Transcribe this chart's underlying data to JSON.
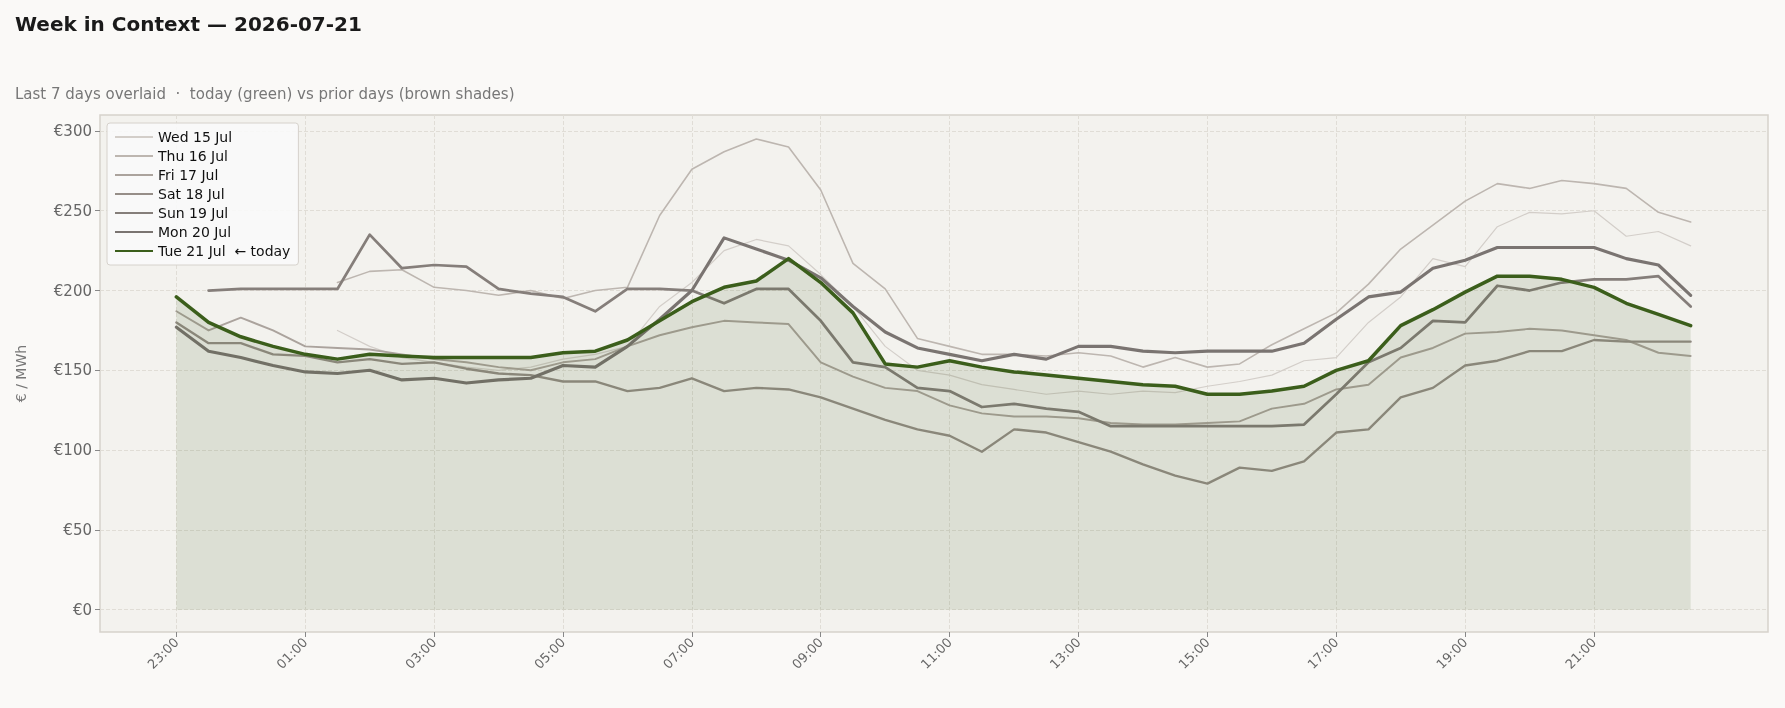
{
  "chart_data": {
    "type": "line",
    "title": "Week in Context — 2026-07-21",
    "subtitle": "Last 7 days overlaid  ·  today (green) vs prior days (brown shades)",
    "ylabel": "€ / MWh",
    "categories": [
      "23:00",
      null,
      null,
      null,
      "01:00",
      null,
      null,
      null,
      "03:00",
      null,
      null,
      null,
      "05:00",
      null,
      null,
      null,
      "07:00",
      null,
      null,
      null,
      "09:00",
      null,
      null,
      null,
      "11:00",
      null,
      null,
      null,
      "13:00",
      null,
      null,
      null,
      "15:00",
      null,
      null,
      null,
      "17:00",
      null,
      null,
      null,
      "19:00",
      null,
      null,
      null,
      "21:00",
      null,
      null,
      null
    ],
    "ylim": [
      -14,
      310
    ],
    "yticks": [
      {
        "value": 0,
        "label": "€0"
      },
      {
        "value": 50,
        "label": "€50"
      },
      {
        "value": 100,
        "label": "€100"
      },
      {
        "value": 150,
        "label": "€150"
      },
      {
        "value": 200,
        "label": "€200"
      },
      {
        "value": 250,
        "label": "€250"
      },
      {
        "value": 300,
        "label": "€300"
      }
    ],
    "grid": true,
    "legend": "top left",
    "marker": "none",
    "line_style": "solid",
    "series": [
      {
        "name": "Wed 15 Jul",
        "color": "#d3cec9",
        "values": [
          null,
          null,
          null,
          null,
          null,
          175,
          165,
          158,
          155,
          152,
          150,
          152,
          157,
          160,
          165,
          190,
          205,
          225,
          232,
          228,
          210,
          190,
          165,
          150,
          147,
          141,
          138,
          135,
          137,
          135,
          137,
          136,
          140,
          143,
          147,
          156,
          158,
          180,
          196,
          220,
          215,
          240,
          249,
          248,
          250,
          234,
          237,
          228
        ]
      },
      {
        "name": "Thu 16 Jul",
        "color": "#bdb6b0",
        "values": [
          null,
          null,
          null,
          null,
          null,
          205,
          212,
          213,
          202,
          200,
          197,
          200,
          195,
          200,
          202,
          247,
          276,
          287,
          295,
          290,
          263,
          217,
          201,
          170,
          165,
          160,
          160,
          159,
          161,
          159,
          152,
          158,
          152,
          154,
          166,
          176,
          186,
          204,
          226,
          241,
          256,
          267,
          264,
          269,
          267,
          264,
          249,
          243
        ]
      },
      {
        "name": "Fri 17 Jul",
        "color": "#aba39d",
        "values": [
          187,
          175,
          183,
          175,
          165,
          164,
          163,
          160,
          157,
          155,
          152,
          150,
          155,
          157,
          165,
          172,
          177,
          181,
          180,
          179,
          155,
          146,
          139,
          137,
          128,
          123,
          121,
          121,
          120,
          117,
          116,
          116,
          117,
          118,
          126,
          129,
          138,
          141,
          158,
          164,
          173,
          174,
          176,
          175,
          172,
          169,
          161,
          159
        ]
      },
      {
        "name": "Sat 18 Jul",
        "color": "#968e88",
        "values": [
          180,
          167,
          167,
          160,
          159,
          155,
          157,
          154,
          155,
          151,
          148,
          147,
          143,
          143,
          137,
          139,
          145,
          137,
          139,
          138,
          133,
          126,
          119,
          113,
          109,
          99,
          113,
          111,
          105,
          99,
          91,
          84,
          79,
          89,
          87,
          93,
          111,
          113,
          133,
          139,
          153,
          156,
          162,
          162,
          169,
          168,
          168,
          168
        ]
      },
      {
        "name": "Sun 19 Jul",
        "color": "#857e7a",
        "values": [
          null,
          200,
          201,
          201,
          201,
          201,
          235,
          214,
          216,
          215,
          201,
          198,
          196,
          187,
          201,
          201,
          200,
          192,
          201,
          201,
          181,
          155,
          152,
          139,
          137,
          127,
          129,
          126,
          124,
          115,
          115,
          115,
          115,
          115,
          115,
          116,
          135,
          155,
          164,
          181,
          180,
          203,
          200,
          205,
          207,
          207,
          209,
          190
        ]
      },
      {
        "name": "Mon 20 Jul",
        "color": "#7a7471",
        "values": [
          177,
          162,
          158,
          153,
          149,
          148,
          150,
          144,
          145,
          142,
          144,
          145,
          153,
          152,
          165,
          182,
          200,
          233,
          226,
          219,
          208,
          190,
          174,
          164,
          160,
          156,
          160,
          157,
          165,
          165,
          162,
          161,
          162,
          162,
          162,
          167,
          182,
          196,
          199,
          214,
          219,
          227,
          227,
          227,
          227,
          220,
          216,
          197
        ]
      },
      {
        "name": "Tue 21 Jul  ← today",
        "color": "#3b5e1b",
        "type": "area",
        "values": [
          196,
          180,
          171,
          165,
          160,
          157,
          160,
          159,
          158,
          158,
          158,
          158,
          161,
          162,
          169,
          181,
          193,
          202,
          206,
          220,
          205,
          186,
          154,
          152,
          156,
          152,
          149,
          147,
          145,
          143,
          141,
          140,
          135,
          135,
          137,
          140,
          150,
          156,
          178,
          188,
          199,
          209,
          209,
          207,
          202,
          192,
          185,
          178
        ]
      }
    ]
  }
}
